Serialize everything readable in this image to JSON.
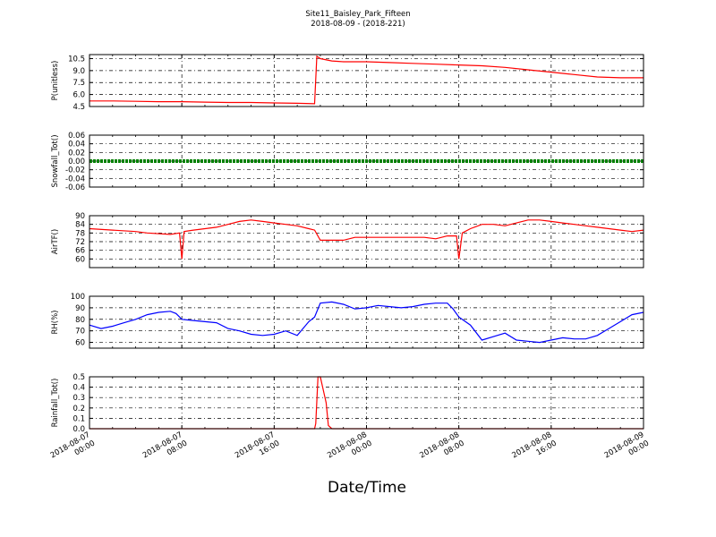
{
  "chart_data": {
    "type": "line",
    "title": [
      "Site11_Baisley_Park_Fifteen",
      "2018-08-09 - (2018-221)"
    ],
    "xlabel": "Date/Time",
    "x_ticks": [
      [
        "2018-08-07",
        "00:00"
      ],
      [
        "2018-08-07",
        "08:00"
      ],
      [
        "2018-08-07",
        "16:00"
      ],
      [
        "2018-08-08",
        "00:00"
      ],
      [
        "2018-08-08",
        "08:00"
      ],
      [
        "2018-08-08",
        "16:00"
      ],
      [
        "2018-08-09",
        "00:00"
      ]
    ],
    "x_range_hours": [
      0,
      48
    ],
    "grid": true,
    "panels": [
      {
        "ylabel": "P(unitless)",
        "ylim": [
          4.5,
          11
        ],
        "yticks": [
          "4.5",
          "6.0",
          "7.5",
          "9.0",
          "10.5"
        ],
        "ytick_values": [
          4.5,
          6.0,
          7.5,
          9.0,
          10.5
        ],
        "color": "#ff0000",
        "series": {
          "x": [
            0,
            2,
            4,
            6,
            8,
            10,
            12,
            14,
            16,
            18,
            19.5,
            19.7,
            20,
            21,
            22,
            24,
            26,
            28,
            30,
            32,
            34,
            36,
            38,
            40,
            42,
            44,
            46,
            48
          ],
          "y": [
            5.2,
            5.2,
            5.15,
            5.1,
            5.1,
            5.05,
            5.0,
            5.0,
            4.95,
            4.9,
            4.85,
            10.8,
            10.5,
            10.2,
            10.1,
            10.1,
            10.0,
            9.9,
            9.8,
            9.7,
            9.6,
            9.4,
            9.1,
            8.8,
            8.5,
            8.2,
            8.1,
            8.1
          ]
        }
      },
      {
        "ylabel": "Snowfall_Tot()",
        "ylim": [
          -0.06,
          0.06
        ],
        "yticks": [
          "-0.06",
          "-0.04",
          "-0.02",
          "0.00",
          "0.02",
          "0.04",
          "0.06"
        ],
        "ytick_values": [
          -0.06,
          -0.04,
          -0.02,
          0.0,
          0.02,
          0.04,
          0.06
        ],
        "color": "#008000",
        "series": {
          "x": [
            0,
            48
          ],
          "y": [
            0,
            0
          ]
        }
      },
      {
        "ylabel": "AirTF()",
        "ylim": [
          54,
          90
        ],
        "yticks": [
          "60",
          "66",
          "72",
          "78",
          "84",
          "90"
        ],
        "ytick_values": [
          60,
          66,
          72,
          78,
          84,
          90
        ],
        "color": "#ff0000",
        "series": {
          "x": [
            0,
            2,
            4,
            5,
            7,
            7.8,
            8.0,
            8.2,
            9,
            10,
            11,
            12,
            13,
            14,
            15,
            16,
            17,
            18,
            19,
            19.5,
            20,
            21,
            22,
            23,
            24,
            25,
            26,
            27,
            28,
            29,
            30,
            31,
            31.8,
            32.0,
            32.3,
            33,
            34,
            35,
            36,
            37,
            38,
            39,
            40,
            41,
            42,
            43,
            44,
            45,
            46,
            47,
            48
          ],
          "y": [
            81,
            80,
            79,
            78,
            77,
            78,
            60,
            79,
            80,
            81,
            82,
            84,
            86,
            87,
            86,
            85,
            84,
            83,
            81,
            80,
            73,
            73,
            73,
            75,
            75,
            75,
            75,
            75,
            75,
            75,
            74,
            76,
            76,
            60,
            78,
            81,
            84,
            84,
            83,
            85,
            87,
            87,
            86,
            85,
            84,
            83,
            82,
            81,
            80,
            79,
            80
          ]
        }
      },
      {
        "ylabel": "RH(%)",
        "ylim": [
          55,
          100
        ],
        "yticks": [
          "60",
          "70",
          "80",
          "90",
          "100"
        ],
        "ytick_values": [
          60,
          70,
          80,
          90,
          100
        ],
        "color": "#0000ff",
        "series": {
          "x": [
            0,
            1,
            2,
            3,
            4,
            5,
            6,
            7,
            7.5,
            8,
            9,
            10,
            11,
            12,
            13,
            14,
            15,
            16,
            17,
            18,
            19,
            19.5,
            20,
            21,
            22,
            23,
            24,
            25,
            26,
            27,
            28,
            29,
            30,
            31,
            31.5,
            32,
            33,
            34,
            35,
            36,
            37,
            38,
            39,
            40,
            41,
            42,
            43,
            44,
            45,
            46,
            47,
            48
          ],
          "y": [
            75,
            72,
            74,
            77,
            80,
            84,
            86,
            87,
            85,
            80,
            79,
            78,
            77,
            72,
            70,
            67,
            66,
            67,
            70,
            66,
            78,
            82,
            94,
            95,
            93,
            89,
            90,
            92,
            91,
            90,
            91,
            93,
            94,
            94,
            89,
            82,
            75,
            62,
            65,
            68,
            62,
            61,
            60,
            62,
            64,
            63,
            63,
            66,
            72,
            78,
            84,
            86
          ]
        }
      },
      {
        "ylabel": "Rainfall_Tot()",
        "ylim": [
          0,
          0.5
        ],
        "yticks": [
          "0.0",
          "0.1",
          "0.2",
          "0.3",
          "0.4",
          "0.5"
        ],
        "ytick_values": [
          0,
          0.1,
          0.2,
          0.3,
          0.4,
          0.5
        ],
        "color": "#ff0000",
        "series": {
          "x": [
            0,
            19.5,
            19.6,
            19.8,
            20.0,
            20.2,
            20.5,
            20.7,
            21.0,
            48
          ],
          "y": [
            0,
            0,
            0.05,
            0.5,
            0.5,
            0.4,
            0.25,
            0.03,
            0,
            0
          ]
        }
      }
    ]
  }
}
